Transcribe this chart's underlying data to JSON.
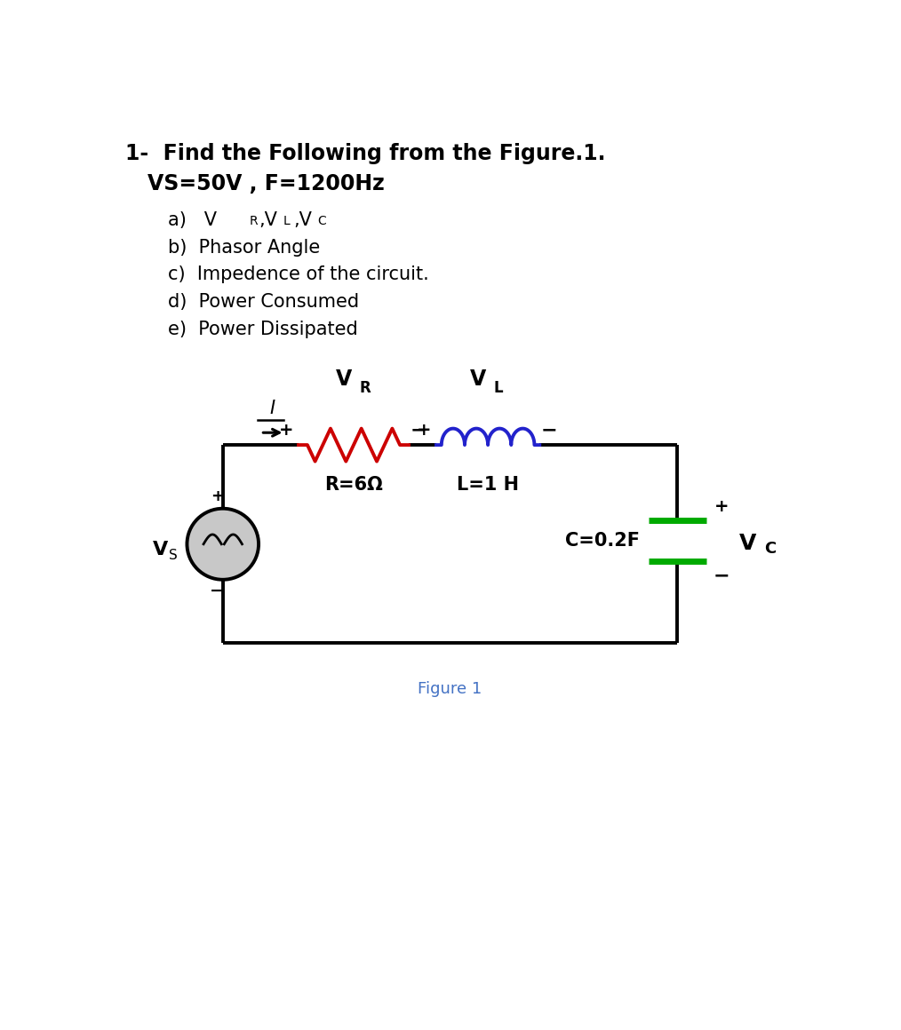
{
  "bg_color": "#ffffff",
  "text_color": "#000000",
  "title_line1": "1-  Find the Following from the Figure.1.",
  "title_line2": "VS=50V , F=1200Hz",
  "item_a": "a)  VR,VL,VC",
  "item_b": "b)  Phasor Angle",
  "item_c": "c)  Impedence of the circuit.",
  "item_d": "d)  Power Consumed",
  "item_e": "e)  Power Dissipated",
  "figure_label": "Figure 1",
  "figure_label_color": "#4472c4",
  "circuit": {
    "resistor_color": "#cc0000",
    "inductor_color": "#2222cc",
    "capacitor_color": "#00aa00",
    "wire_color": "#000000",
    "source_face_color": "#c8c8c8",
    "R_label": "R=6Ω",
    "L_label": "L=1 H",
    "C_label": "C=0.2F",
    "wire_lw": 2.8
  }
}
